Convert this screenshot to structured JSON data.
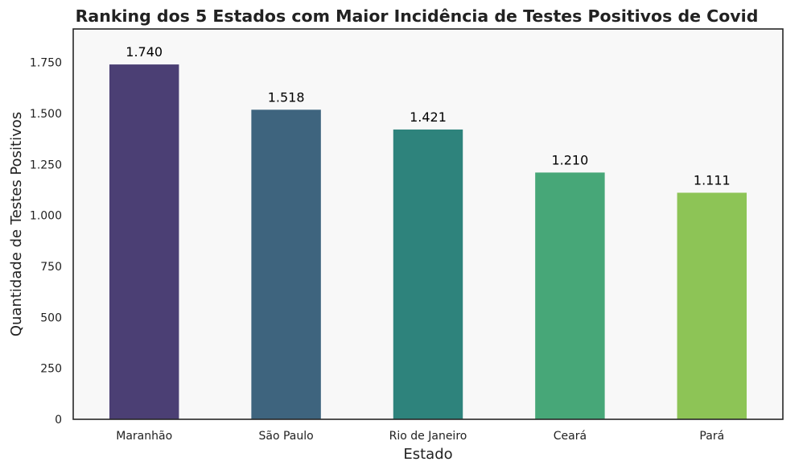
{
  "chart_data": {
    "type": "bar",
    "title": "Ranking dos 5 Estados com Maior Incidência de Testes Positivos de Covid",
    "xlabel": "Estado",
    "ylabel": "Quantidade de Testes Positivos",
    "categories": [
      "Maranhão",
      "São Paulo",
      "Rio de Janeiro",
      "Ceará",
      "Pará"
    ],
    "values": [
      1740,
      1518,
      1421,
      1210,
      1111
    ],
    "value_labels": [
      "1.740",
      "1.518",
      "1.421",
      "1.210",
      "1.111"
    ],
    "colors": [
      "#4b3f74",
      "#3e647e",
      "#2e837c",
      "#47a778",
      "#8dc456"
    ],
    "ylim": [
      0,
      1914
    ],
    "yticks": [
      0,
      250,
      500,
      750,
      1000,
      1250,
      1500,
      1750
    ],
    "ytick_labels": [
      "0",
      "250",
      "500",
      "750",
      "1.000",
      "1.250",
      "1.500",
      "1.750"
    ],
    "grid": false,
    "plot_background": "#f8f8f8",
    "legend": "none"
  }
}
